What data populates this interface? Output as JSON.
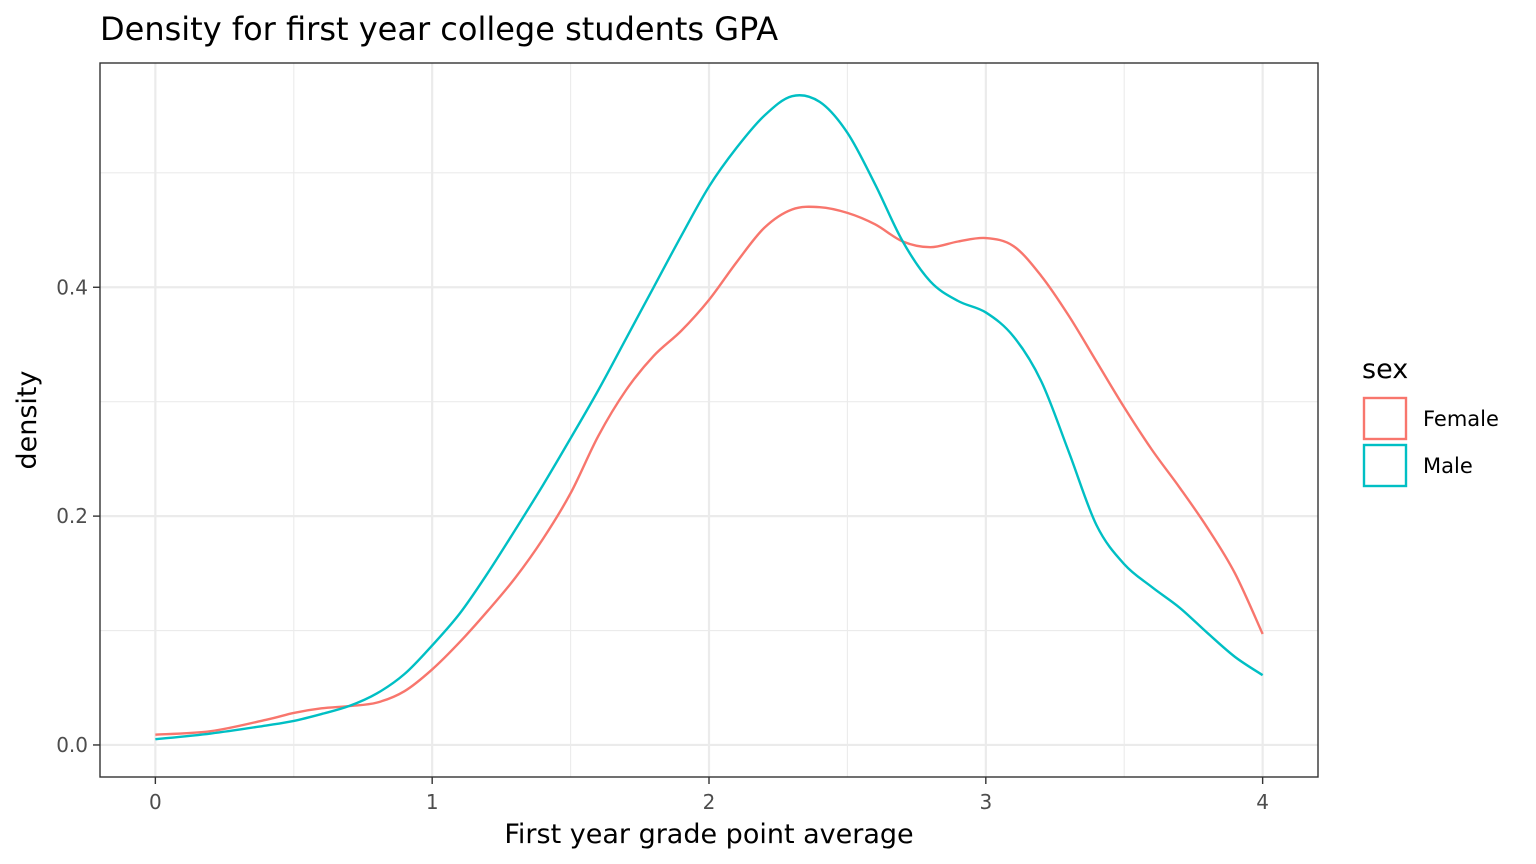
{
  "chart_data": {
    "type": "line",
    "title": "Density for first year college students GPA",
    "xlabel": "First year grade point average",
    "ylabel": "density",
    "xlim": [
      -0.2,
      4.2
    ],
    "ylim": [
      -0.028,
      0.596
    ],
    "x_major_ticks": [
      0,
      1,
      2,
      3,
      4
    ],
    "x_tick_labels": [
      "0",
      "1",
      "2",
      "3",
      "4"
    ],
    "x_minor_ticks": [
      0.5,
      1.5,
      2.5,
      3.5
    ],
    "y_major_ticks": [
      0.0,
      0.2,
      0.4
    ],
    "y_tick_labels": [
      "0.0",
      "0.2",
      "0.4"
    ],
    "y_minor_ticks": [
      0.1,
      0.3,
      0.5
    ],
    "grid": true,
    "legend": {
      "title": "sex",
      "position": "right"
    },
    "series": [
      {
        "name": "Female",
        "color": "#F8766D",
        "x": [
          0.0,
          0.2,
          0.4,
          0.5,
          0.6,
          0.7,
          0.8,
          0.9,
          1.0,
          1.1,
          1.2,
          1.3,
          1.4,
          1.5,
          1.6,
          1.7,
          1.8,
          1.9,
          2.0,
          2.1,
          2.2,
          2.3,
          2.4,
          2.5,
          2.6,
          2.7,
          2.8,
          2.9,
          3.0,
          3.1,
          3.2,
          3.3,
          3.4,
          3.5,
          3.6,
          3.7,
          3.8,
          3.9,
          4.0
        ],
        "y": [
          0.009,
          0.012,
          0.022,
          0.028,
          0.032,
          0.034,
          0.037,
          0.047,
          0.066,
          0.09,
          0.117,
          0.146,
          0.18,
          0.22,
          0.27,
          0.31,
          0.34,
          0.362,
          0.389,
          0.422,
          0.452,
          0.468,
          0.47,
          0.465,
          0.455,
          0.44,
          0.435,
          0.44,
          0.443,
          0.436,
          0.41,
          0.375,
          0.335,
          0.295,
          0.258,
          0.225,
          0.19,
          0.15,
          0.097
        ]
      },
      {
        "name": "Male",
        "color": "#00BFC4",
        "x": [
          0.0,
          0.2,
          0.4,
          0.5,
          0.6,
          0.7,
          0.8,
          0.9,
          1.0,
          1.1,
          1.2,
          1.3,
          1.4,
          1.5,
          1.6,
          1.7,
          1.8,
          1.9,
          2.0,
          2.1,
          2.2,
          2.3,
          2.4,
          2.5,
          2.6,
          2.7,
          2.8,
          2.9,
          3.0,
          3.1,
          3.2,
          3.3,
          3.4,
          3.5,
          3.6,
          3.7,
          3.8,
          3.9,
          4.0
        ],
        "y": [
          0.005,
          0.01,
          0.017,
          0.021,
          0.027,
          0.034,
          0.045,
          0.062,
          0.087,
          0.115,
          0.15,
          0.188,
          0.227,
          0.268,
          0.31,
          0.355,
          0.4,
          0.445,
          0.488,
          0.522,
          0.55,
          0.567,
          0.562,
          0.535,
          0.49,
          0.44,
          0.405,
          0.388,
          0.378,
          0.357,
          0.318,
          0.256,
          0.192,
          0.158,
          0.138,
          0.12,
          0.098,
          0.077,
          0.061
        ]
      }
    ]
  }
}
